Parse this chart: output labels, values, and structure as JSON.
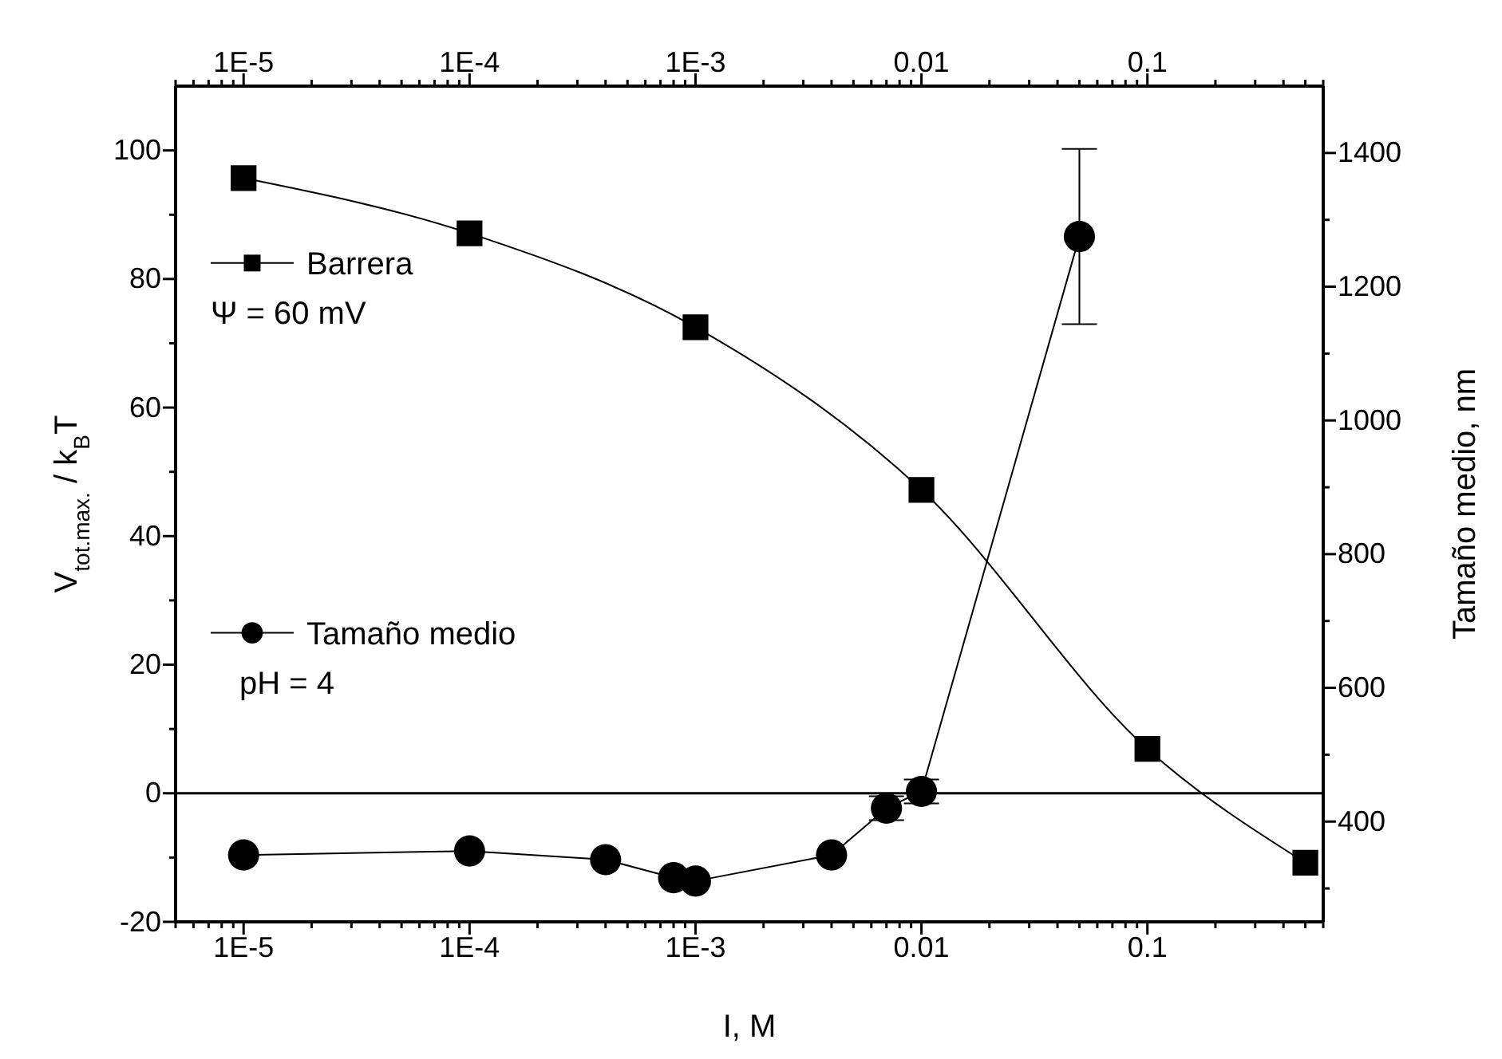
{
  "chart_data": {
    "type": "line",
    "xlabel": "I, M",
    "ylabel": "V$_{tot.max.}$ / k$_{B}$T",
    "y2label": "Tamaño medio, nm",
    "log": "x",
    "legend": "left",
    "line_style": "solid",
    "grid": false,
    "xlim": [
      5e-06,
      0.6
    ],
    "ylim": [
      -20,
      110
    ],
    "y2lim": [
      250,
      1500
    ],
    "xticks": [
      {
        "value": 5e-06,
        "label": null
      },
      {
        "value": 6e-06,
        "label": null
      },
      {
        "value": 7e-06,
        "label": null
      },
      {
        "value": 8e-06,
        "label": null
      },
      {
        "value": 9e-06,
        "label": null
      },
      {
        "value": 1e-05,
        "label": "1E-5"
      },
      {
        "value": 2e-05,
        "label": null
      },
      {
        "value": 3e-05,
        "label": null
      },
      {
        "value": 4e-05,
        "label": null
      },
      {
        "value": 5e-05,
        "label": null
      },
      {
        "value": 6e-05,
        "label": null
      },
      {
        "value": 7e-05,
        "label": null
      },
      {
        "value": 8e-05,
        "label": null
      },
      {
        "value": 9e-05,
        "label": null
      },
      {
        "value": 0.0001,
        "label": "1E-4"
      },
      {
        "value": 0.0002,
        "label": null
      },
      {
        "value": 0.0003,
        "label": null
      },
      {
        "value": 0.0004,
        "label": null
      },
      {
        "value": 0.0005,
        "label": null
      },
      {
        "value": 0.0006,
        "label": null
      },
      {
        "value": 0.0007,
        "label": null
      },
      {
        "value": 0.0008,
        "label": null
      },
      {
        "value": 0.0009,
        "label": null
      },
      {
        "value": 0.001,
        "label": "1E-3"
      },
      {
        "value": 0.002,
        "label": null
      },
      {
        "value": 0.003,
        "label": null
      },
      {
        "value": 0.004,
        "label": null
      },
      {
        "value": 0.005,
        "label": null
      },
      {
        "value": 0.006,
        "label": null
      },
      {
        "value": 0.007,
        "label": null
      },
      {
        "value": 0.008,
        "label": null
      },
      {
        "value": 0.009,
        "label": null
      },
      {
        "value": 0.01,
        "label": "0.01"
      },
      {
        "value": 0.02,
        "label": null
      },
      {
        "value": 0.03,
        "label": null
      },
      {
        "value": 0.04,
        "label": null
      },
      {
        "value": 0.05,
        "label": null
      },
      {
        "value": 0.06,
        "label": null
      },
      {
        "value": 0.07,
        "label": null
      },
      {
        "value": 0.08,
        "label": null
      },
      {
        "value": 0.09,
        "label": null
      },
      {
        "value": 0.1,
        "label": "0.1"
      },
      {
        "value": 0.2,
        "label": null
      },
      {
        "value": 0.3,
        "label": null
      },
      {
        "value": 0.4,
        "label": null
      },
      {
        "value": 0.5,
        "label": null
      },
      {
        "value": 0.6,
        "label": null
      }
    ],
    "yticks": [
      -20,
      {
        "value": -10,
        "label": null
      },
      0,
      {
        "value": 10,
        "label": null
      },
      20,
      {
        "value": 30,
        "label": null
      },
      40,
      {
        "value": 50,
        "label": null
      },
      60,
      {
        "value": 70,
        "label": null
      },
      80,
      {
        "value": 90,
        "label": null
      },
      100
    ],
    "y2ticks": [
      {
        "value": 300,
        "label": null
      },
      400,
      {
        "value": 500,
        "label": null
      },
      600,
      {
        "value": 700,
        "label": null
      },
      800,
      {
        "value": 900,
        "label": null
      },
      1000,
      {
        "value": 1100,
        "label": null
      },
      1200,
      {
        "value": 1300,
        "label": null
      },
      1400
    ],
    "ref_lines": [
      {
        "axis": "y",
        "value": 0,
        "color": "#000000"
      }
    ],
    "annotations": [
      "Ψ = 60 mV",
      "pH = 4"
    ],
    "series": [
      {
        "name": "Barrera",
        "color": "#000000",
        "marker": "square",
        "axis": "y",
        "x": [
          1e-05,
          0.0001,
          0.001,
          0.01,
          0.1,
          0.5
        ],
        "values": [
          95.7,
          87.1,
          72.5,
          47.2,
          6.9,
          -10.8
        ]
      },
      {
        "name": "Tamaño medio",
        "color": "#000000",
        "marker": "circle",
        "axis": "y2",
        "x": [
          1e-05,
          0.0001,
          0.0004,
          0.0008,
          0.001,
          0.004,
          0.007,
          0.01,
          0.05
        ],
        "values": [
          350,
          356,
          343,
          316,
          311,
          350,
          420,
          445,
          1275
        ],
        "errors": [
          null,
          null,
          null,
          null,
          null,
          null,
          18,
          18,
          131
        ]
      }
    ]
  }
}
